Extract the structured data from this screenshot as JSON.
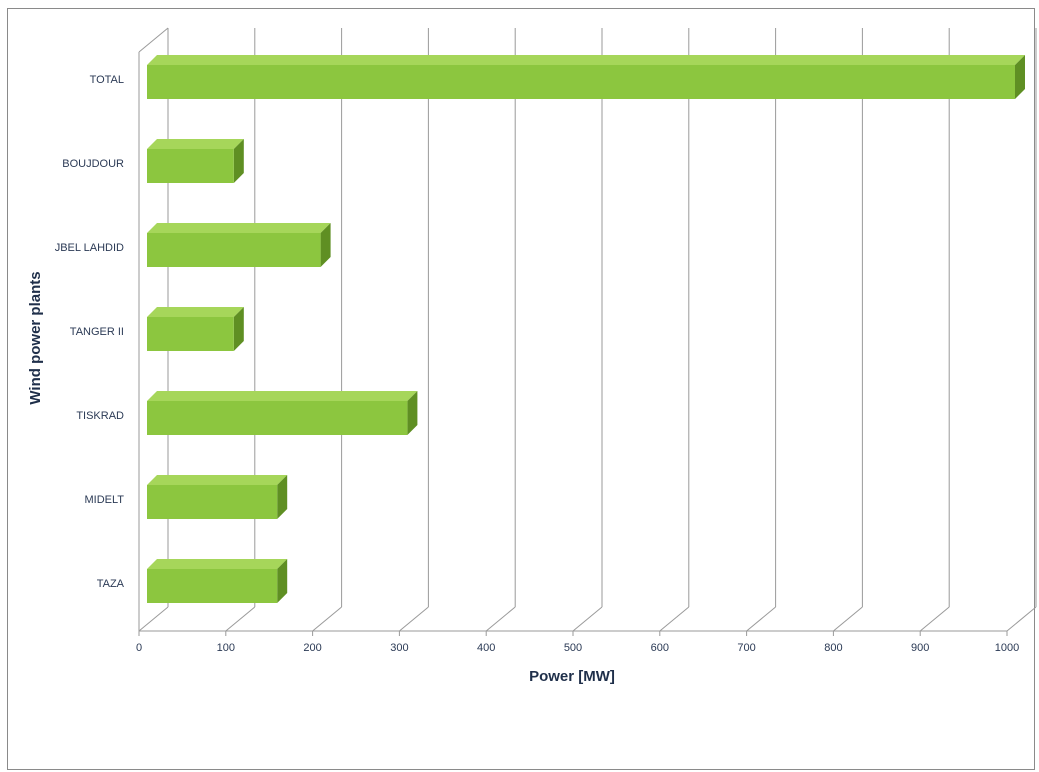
{
  "chart_data": {
    "type": "bar",
    "orientation": "horizontal",
    "style": "3d",
    "categories": [
      "TOTAL",
      "BOUJDOUR",
      "JBEL LAHDID",
      "TANGER II",
      "TISKRAD",
      "MIDELT",
      "TAZA"
    ],
    "values": [
      1000,
      100,
      200,
      100,
      300,
      150,
      150
    ],
    "xlabel": "Power [MW]",
    "ylabel": "Wind power plants",
    "xlim": [
      0,
      1000
    ],
    "xticks": [
      0,
      100,
      200,
      300,
      400,
      500,
      600,
      700,
      800,
      900,
      1000
    ],
    "grid": true,
    "legend": "none",
    "colors": {
      "bar_front": "#8cc63f",
      "bar_top": "#a6d65a",
      "bar_side": "#5f8f23",
      "grid": "#9a9a9a"
    }
  }
}
